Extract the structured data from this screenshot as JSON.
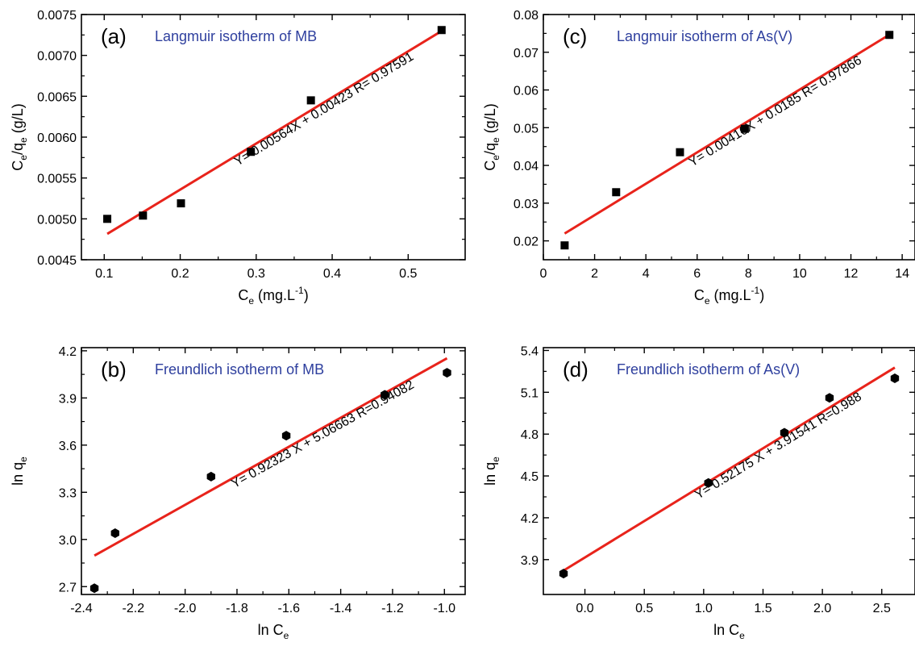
{
  "chart_data": [
    {
      "type": "scatter",
      "panel_label": "(a)",
      "title": "Langmuir isotherm of MB",
      "xlabel_main": "C",
      "xlabel_sub": "e",
      "xlabel_unit_pre": " (mg.L",
      "xlabel_sup": "-1",
      "xlabel_unit_post": ")",
      "ylabel_parts": [
        "C",
        "e",
        "/q",
        "e",
        " (g/L)"
      ],
      "xlim": [
        0.07,
        0.575
      ],
      "ylim": [
        0.0045,
        0.0075
      ],
      "xticks": [
        0.1,
        0.2,
        0.3,
        0.4,
        0.5
      ],
      "xtick_labels": [
        "0.1",
        "0.2",
        "0.3",
        "0.4",
        "0.5"
      ],
      "yticks": [
        0.0045,
        0.005,
        0.0055,
        0.006,
        0.0065,
        0.007,
        0.0075
      ],
      "ytick_labels": [
        "0.0045",
        "0.0050",
        "0.0055",
        "0.0060",
        "0.0065",
        "0.0070",
        "0.0075"
      ],
      "marker": "square",
      "points": [
        [
          0.104,
          0.005
        ],
        [
          0.151,
          0.00504
        ],
        [
          0.201,
          0.00519
        ],
        [
          0.293,
          0.00582
        ],
        [
          0.372,
          0.00645
        ],
        [
          0.544,
          0.00731
        ]
      ],
      "fit": {
        "slope": 0.00564,
        "intercept": 0.00423,
        "x_range": [
          0.104,
          0.544
        ],
        "color": "#e8231b"
      },
      "equation": "Y= 0.00564X + 0.00423  R= 0.97591"
    },
    {
      "type": "scatter",
      "panel_label": "(b)",
      "title": "Freundlich isotherm of MB",
      "xlabel_main": "ln C",
      "xlabel_sub": "e",
      "xlabel_unit_pre": "",
      "xlabel_sup": "",
      "xlabel_unit_post": "",
      "ylabel_parts": [
        "ln q",
        "e",
        "",
        "",
        ""
      ],
      "xlim": [
        -2.4,
        -0.92
      ],
      "ylim": [
        2.65,
        4.22
      ],
      "xticks": [
        -2.4,
        -2.2,
        -2.0,
        -1.8,
        -1.6,
        -1.4,
        -1.2,
        -1.0
      ],
      "xtick_labels": [
        "-2.4",
        "-2.2",
        "-2.0",
        "-1.8",
        "-1.6",
        "-1.4",
        "-1.2",
        "-1.0"
      ],
      "yticks": [
        2.7,
        3.0,
        3.3,
        3.6,
        3.9,
        4.2
      ],
      "ytick_labels": [
        "2.7",
        "3.0",
        "3.3",
        "3.6",
        "3.9",
        "4.2"
      ],
      "marker": "hexagon",
      "points": [
        [
          -2.35,
          2.69
        ],
        [
          -2.27,
          3.04
        ],
        [
          -1.9,
          3.4
        ],
        [
          -1.61,
          3.66
        ],
        [
          -1.23,
          3.92
        ],
        [
          -0.99,
          4.06
        ]
      ],
      "fit": {
        "slope": 0.92323,
        "intercept": 5.06663,
        "x_range": [
          -2.35,
          -0.99
        ],
        "color": "#e8231b"
      },
      "equation": "Y= 0.92323 X + 5.06663  R=0.94082"
    },
    {
      "type": "scatter",
      "panel_label": "(c)",
      "title": "Langmuir isotherm of As(V)",
      "xlabel_main": "C",
      "xlabel_sub": "e",
      "xlabel_unit_pre": " (mg.L",
      "xlabel_sup": "-1",
      "xlabel_unit_post": ")",
      "ylabel_parts": [
        "C",
        "e",
        "/q",
        "e",
        " (g/L)"
      ],
      "xlim": [
        0,
        14.5
      ],
      "ylim": [
        0.015,
        0.08
      ],
      "xticks": [
        0,
        2,
        4,
        6,
        8,
        10,
        12,
        14
      ],
      "xtick_labels": [
        "0",
        "2",
        "4",
        "6",
        "8",
        "10",
        "12",
        "14"
      ],
      "yticks": [
        0.02,
        0.03,
        0.04,
        0.05,
        0.06,
        0.07,
        0.08
      ],
      "ytick_labels": [
        "0.02",
        "0.03",
        "0.04",
        "0.05",
        "0.06",
        "0.07",
        "0.08"
      ],
      "marker": "square",
      "points": [
        [
          0.83,
          0.0188
        ],
        [
          2.84,
          0.0329
        ],
        [
          5.33,
          0.0435
        ],
        [
          7.86,
          0.0497
        ],
        [
          13.5,
          0.0746
        ]
      ],
      "fit": {
        "slope": 0.00416,
        "intercept": 0.0185,
        "x_range": [
          0.83,
          13.5
        ],
        "color": "#e8231b"
      },
      "equation": "Y= 0.00416X + 0.0185  R= 0.97866"
    },
    {
      "type": "scatter",
      "panel_label": "(d)",
      "title": "Freundlich isotherm of As(V)",
      "xlabel_main": "ln C",
      "xlabel_sub": "e",
      "xlabel_unit_pre": "",
      "xlabel_sup": "",
      "xlabel_unit_post": "",
      "ylabel_parts": [
        "ln q",
        "e",
        "",
        "",
        ""
      ],
      "xlim": [
        -0.35,
        2.78
      ],
      "ylim": [
        3.65,
        5.42
      ],
      "xticks": [
        0.0,
        0.5,
        1.0,
        1.5,
        2.0,
        2.5
      ],
      "xtick_labels": [
        "0.0",
        "0.5",
        "1.0",
        "1.5",
        "2.0",
        "2.5"
      ],
      "yticks": [
        3.9,
        4.2,
        4.5,
        4.8,
        5.1,
        5.4
      ],
      "ytick_labels": [
        "3.9",
        "4.2",
        "4.5",
        "4.8",
        "5.1",
        "5.4"
      ],
      "marker": "hexagon",
      "points": [
        [
          -0.18,
          3.8
        ],
        [
          1.04,
          4.45
        ],
        [
          1.68,
          4.81
        ],
        [
          2.06,
          5.06
        ],
        [
          2.61,
          5.2
        ]
      ],
      "fit": {
        "slope": 0.52175,
        "intercept": 3.91541,
        "x_range": [
          -0.18,
          2.61
        ],
        "color": "#e8231b"
      },
      "equation": "Y= 0.52175 X + 3.91541  R=0.988"
    }
  ],
  "colors": {
    "title": "#2e3f9e",
    "fit": "#e8231b",
    "marker": "#000000",
    "axis": "#000000"
  }
}
